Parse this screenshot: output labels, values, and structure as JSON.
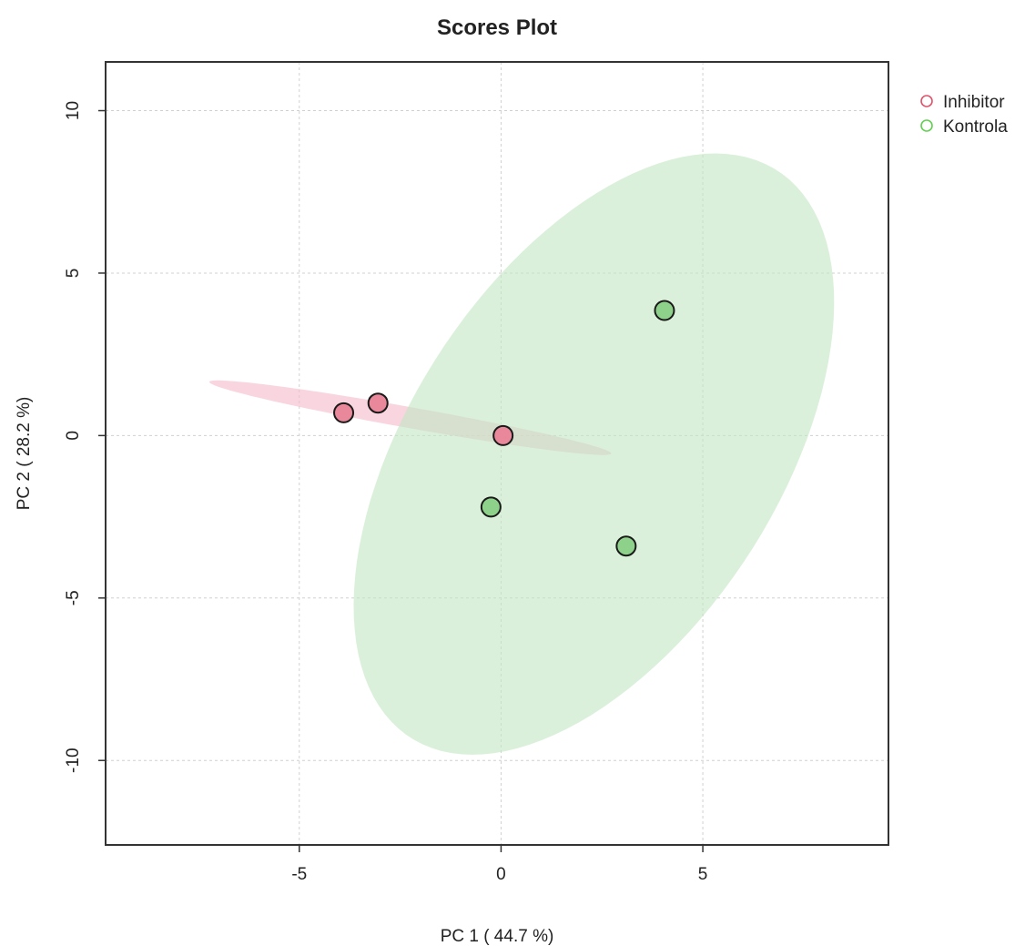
{
  "chart_data": {
    "type": "scatter",
    "title": "Scores Plot",
    "xlabel": "PC 1 ( 44.7 %)",
    "ylabel": "PC 2 ( 28.2 %)",
    "xlim": [
      -9.8,
      9.6
    ],
    "ylim": [
      -12.6,
      11.5
    ],
    "xticks": [
      -5,
      0,
      5
    ],
    "yticks": [
      -10,
      -5,
      0,
      5,
      10
    ],
    "grid": true,
    "legend_position": "right, outside plot",
    "series": [
      {
        "name": "Inhibitor",
        "color": "#df536b",
        "fill": "#e8889a",
        "ellipse_fill": "#f4bccb",
        "points": [
          {
            "x": -3.9,
            "y": 0.7
          },
          {
            "x": -3.05,
            "y": 1.0
          },
          {
            "x": 0.05,
            "y": 0.0
          }
        ],
        "ellipse": {
          "cx": -2.25,
          "cy": 0.55,
          "semi_major": 5.1,
          "semi_minor": 0.32,
          "angle_deg": -12.5
        }
      },
      {
        "name": "Kontrola",
        "color": "#61d04f",
        "fill": "#8ed18a",
        "ellipse_fill": "#c4e6c4",
        "points": [
          {
            "x": 4.05,
            "y": 3.85
          },
          {
            "x": -0.25,
            "y": -2.2
          },
          {
            "x": 3.1,
            "y": -3.4
          }
        ],
        "ellipse": {
          "cx": 2.3,
          "cy": -0.57,
          "semi_major": 9.9,
          "semi_minor": 4.8,
          "angle_deg": 66
        }
      }
    ]
  }
}
